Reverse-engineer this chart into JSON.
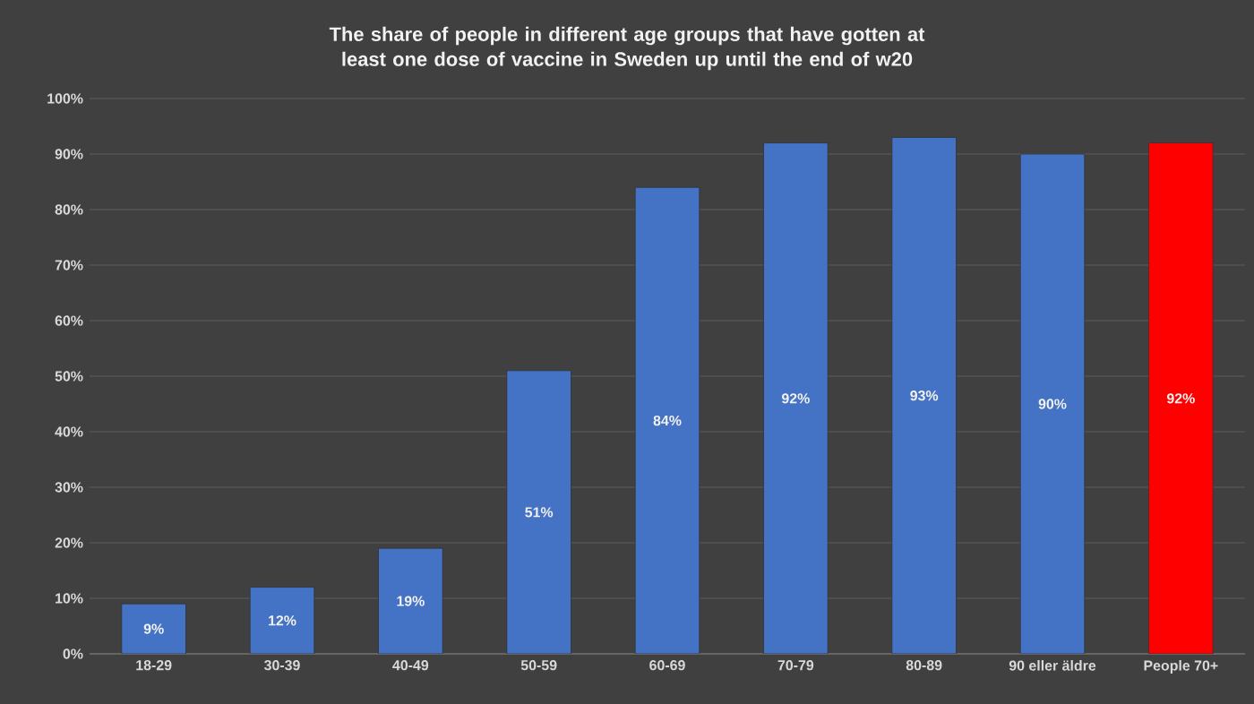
{
  "chart_data": {
    "type": "bar",
    "title": "The share of people in different age groups that have gotten at least one dose of vaccine in Sweden up until the end of w20",
    "categories": [
      "18-29",
      "30-39",
      "40-49",
      "50-59",
      "60-69",
      "70-79",
      "80-89",
      "90 eller äldre",
      "People 70+"
    ],
    "values": [
      9,
      12,
      19,
      51,
      84,
      92,
      93,
      90,
      92
    ],
    "value_labels": [
      "9%",
      "12%",
      "19%",
      "51%",
      "84%",
      "92%",
      "93%",
      "90%",
      "92%"
    ],
    "colors": [
      "#4472c4",
      "#4472c4",
      "#4472c4",
      "#4472c4",
      "#4472c4",
      "#4472c4",
      "#4472c4",
      "#4472c4",
      "#ff0000"
    ],
    "ylim": [
      0,
      100
    ],
    "yticks": [
      {
        "value": 0,
        "label": "0%"
      },
      {
        "value": 10,
        "label": "10%"
      },
      {
        "value": 20,
        "label": "20%"
      },
      {
        "value": 30,
        "label": "30%"
      },
      {
        "value": 40,
        "label": "40%"
      },
      {
        "value": 50,
        "label": "50%"
      },
      {
        "value": 60,
        "label": "60%"
      },
      {
        "value": 70,
        "label": "70%"
      },
      {
        "value": 80,
        "label": "80%"
      },
      {
        "value": 90,
        "label": "90%"
      },
      {
        "value": 100,
        "label": "100%"
      }
    ],
    "grid": "y"
  }
}
